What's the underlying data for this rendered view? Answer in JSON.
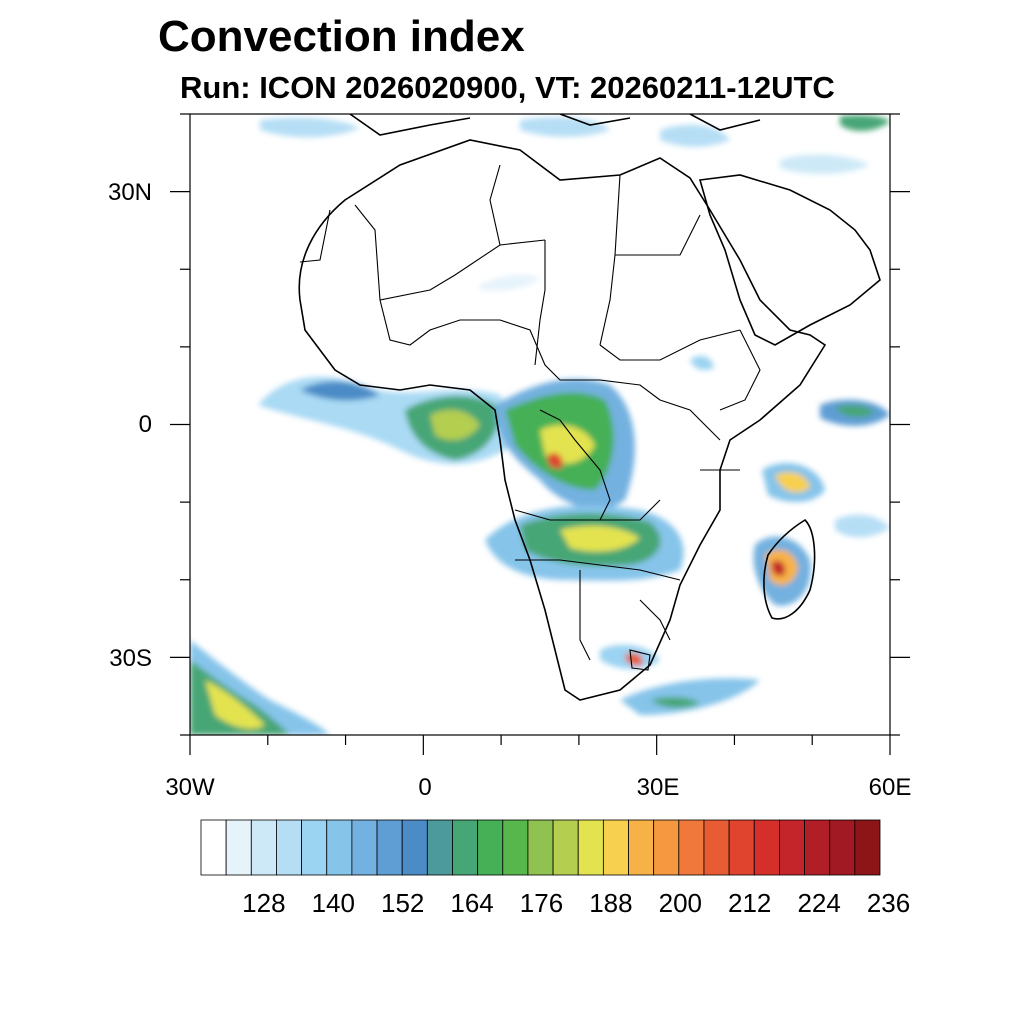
{
  "title": "Convection index",
  "subtitle": "Run: ICON 2026020900,  VT: 20260211-12UTC",
  "axes": {
    "y_labels": [
      "30N",
      "0",
      "30S"
    ],
    "x_labels": [
      "30W",
      "0",
      "30E",
      "60E"
    ],
    "lon_range": [
      -30,
      60
    ],
    "lat_range": [
      -40,
      40
    ]
  },
  "colorbar": {
    "labels": [
      "128",
      "140",
      "152",
      "164",
      "176",
      "188",
      "200",
      "212",
      "224",
      "236"
    ],
    "colors": [
      "#ffffff",
      "#e6f3fb",
      "#cde9f7",
      "#b5def5",
      "#9bd3f2",
      "#86c4ea",
      "#73b1e0",
      "#5f9ed4",
      "#4b8bc6",
      "#4c9a9b",
      "#47a676",
      "#45b055",
      "#58b74c",
      "#8fc250",
      "#b4ce4f",
      "#e3e350",
      "#f8d04f",
      "#f7b247",
      "#f59840",
      "#f0783a",
      "#e85c33",
      "#e0442e",
      "#d42f2a",
      "#c3252a",
      "#b21e27",
      "#a11a23",
      "#8d1517"
    ]
  }
}
